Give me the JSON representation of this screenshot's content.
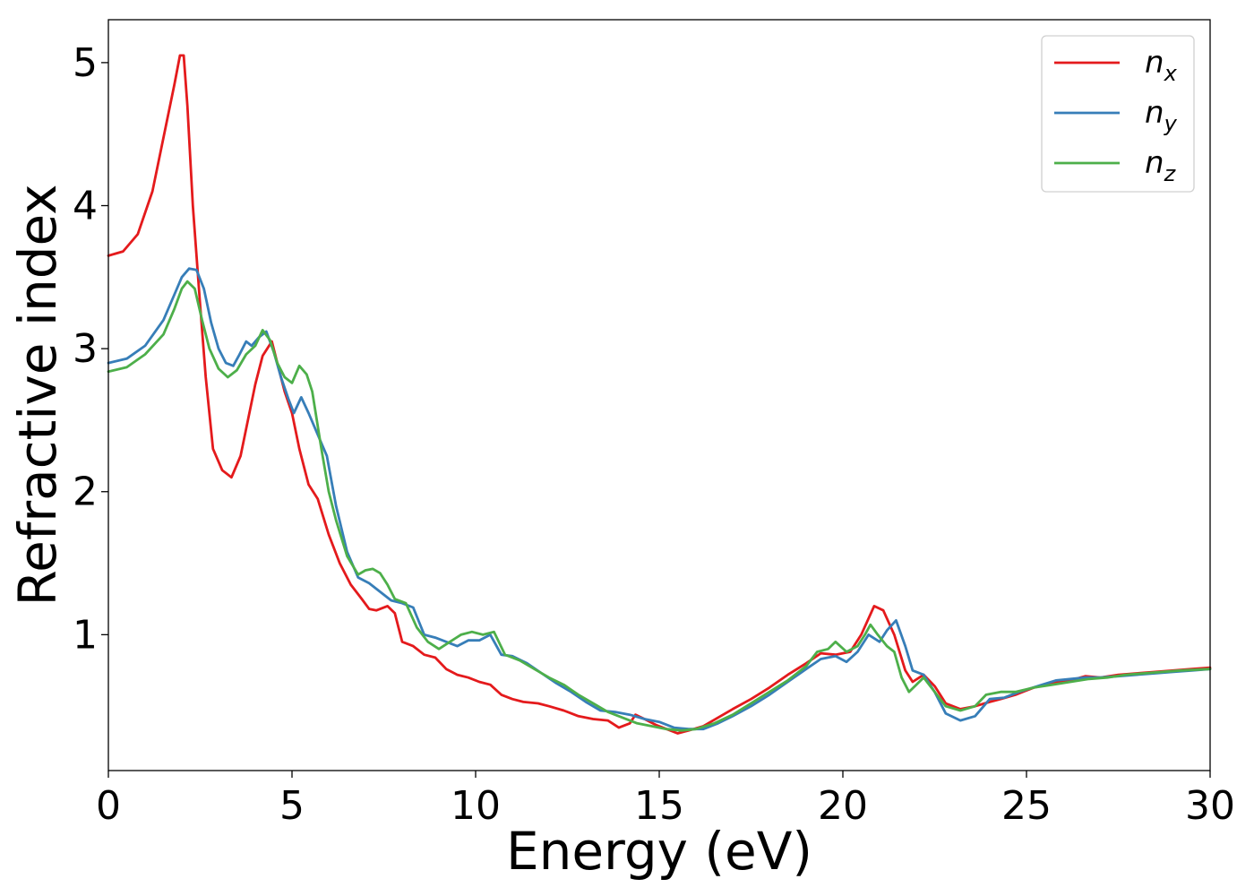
{
  "chart_data": {
    "type": "line",
    "title": "",
    "xlabel": "Energy (eV)",
    "ylabel": "Refractive index",
    "xlim": [
      0,
      30
    ],
    "ylim": [
      0.05,
      5.3
    ],
    "xticks": [
      0,
      5,
      10,
      15,
      20,
      25,
      30
    ],
    "xtick_labels": [
      "0",
      "5",
      "10",
      "15",
      "20",
      "25",
      "30"
    ],
    "yticks": [
      1,
      2,
      3,
      4,
      5
    ],
    "ytick_labels": [
      "1",
      "2",
      "3",
      "4",
      "5"
    ],
    "grid": false,
    "legend_position": "top-right",
    "series": [
      {
        "name": "n_x",
        "label_main": "n",
        "label_sub": "x",
        "color": "#e41a1c",
        "points": [
          [
            0,
            3.65
          ],
          [
            0.4,
            3.68
          ],
          [
            0.8,
            3.8
          ],
          [
            1.2,
            4.1
          ],
          [
            1.6,
            4.6
          ],
          [
            1.8,
            4.85
          ],
          [
            1.95,
            5.05
          ],
          [
            2.05,
            5.05
          ],
          [
            2.15,
            4.7
          ],
          [
            2.3,
            4.0
          ],
          [
            2.5,
            3.3
          ],
          [
            2.65,
            2.8
          ],
          [
            2.85,
            2.3
          ],
          [
            3.1,
            2.15
          ],
          [
            3.35,
            2.1
          ],
          [
            3.6,
            2.25
          ],
          [
            3.8,
            2.5
          ],
          [
            4.0,
            2.75
          ],
          [
            4.2,
            2.95
          ],
          [
            4.45,
            3.05
          ],
          [
            4.6,
            2.9
          ],
          [
            4.8,
            2.7
          ],
          [
            5.0,
            2.55
          ],
          [
            5.2,
            2.3
          ],
          [
            5.45,
            2.05
          ],
          [
            5.7,
            1.95
          ],
          [
            6.0,
            1.7
          ],
          [
            6.3,
            1.5
          ],
          [
            6.6,
            1.35
          ],
          [
            6.9,
            1.25
          ],
          [
            7.1,
            1.18
          ],
          [
            7.3,
            1.17
          ],
          [
            7.6,
            1.2
          ],
          [
            7.8,
            1.15
          ],
          [
            8.0,
            0.95
          ],
          [
            8.3,
            0.92
          ],
          [
            8.6,
            0.86
          ],
          [
            8.9,
            0.84
          ],
          [
            9.2,
            0.76
          ],
          [
            9.5,
            0.72
          ],
          [
            9.8,
            0.7
          ],
          [
            10.1,
            0.67
          ],
          [
            10.4,
            0.65
          ],
          [
            10.7,
            0.58
          ],
          [
            11.0,
            0.55
          ],
          [
            11.3,
            0.53
          ],
          [
            11.7,
            0.52
          ],
          [
            12.0,
            0.5
          ],
          [
            12.4,
            0.47
          ],
          [
            12.8,
            0.43
          ],
          [
            13.2,
            0.41
          ],
          [
            13.6,
            0.4
          ],
          [
            13.9,
            0.35
          ],
          [
            14.2,
            0.38
          ],
          [
            14.35,
            0.44
          ],
          [
            14.6,
            0.41
          ],
          [
            14.9,
            0.37
          ],
          [
            15.2,
            0.34
          ],
          [
            15.5,
            0.31
          ],
          [
            15.8,
            0.33
          ],
          [
            16.2,
            0.36
          ],
          [
            16.6,
            0.42
          ],
          [
            17.0,
            0.48
          ],
          [
            17.5,
            0.55
          ],
          [
            18.0,
            0.63
          ],
          [
            18.5,
            0.72
          ],
          [
            19.0,
            0.8
          ],
          [
            19.4,
            0.87
          ],
          [
            19.8,
            0.86
          ],
          [
            20.2,
            0.88
          ],
          [
            20.5,
            1.0
          ],
          [
            20.85,
            1.2
          ],
          [
            21.1,
            1.17
          ],
          [
            21.4,
            1.0
          ],
          [
            21.7,
            0.75
          ],
          [
            21.9,
            0.67
          ],
          [
            22.2,
            0.72
          ],
          [
            22.5,
            0.64
          ],
          [
            22.8,
            0.52
          ],
          [
            23.2,
            0.48
          ],
          [
            23.6,
            0.5
          ],
          [
            24.0,
            0.53
          ],
          [
            24.3,
            0.55
          ],
          [
            24.7,
            0.58
          ],
          [
            25.2,
            0.63
          ],
          [
            25.7,
            0.66
          ],
          [
            26.2,
            0.68
          ],
          [
            26.6,
            0.71
          ],
          [
            27.0,
            0.7
          ],
          [
            27.5,
            0.72
          ],
          [
            28.0,
            0.73
          ],
          [
            28.5,
            0.74
          ],
          [
            29.0,
            0.75
          ],
          [
            29.5,
            0.76
          ],
          [
            30.0,
            0.77
          ]
        ]
      },
      {
        "name": "n_y",
        "label_main": "n",
        "label_sub": "y",
        "color": "#377eb8",
        "points": [
          [
            0,
            2.9
          ],
          [
            0.5,
            2.93
          ],
          [
            1.0,
            3.02
          ],
          [
            1.5,
            3.2
          ],
          [
            1.8,
            3.38
          ],
          [
            2.0,
            3.5
          ],
          [
            2.2,
            3.56
          ],
          [
            2.4,
            3.55
          ],
          [
            2.6,
            3.42
          ],
          [
            2.8,
            3.18
          ],
          [
            3.0,
            3.0
          ],
          [
            3.2,
            2.9
          ],
          [
            3.4,
            2.88
          ],
          [
            3.55,
            2.95
          ],
          [
            3.75,
            3.05
          ],
          [
            3.9,
            3.02
          ],
          [
            4.1,
            3.08
          ],
          [
            4.3,
            3.12
          ],
          [
            4.5,
            2.98
          ],
          [
            4.7,
            2.8
          ],
          [
            4.9,
            2.65
          ],
          [
            5.05,
            2.55
          ],
          [
            5.25,
            2.66
          ],
          [
            5.45,
            2.55
          ],
          [
            5.7,
            2.4
          ],
          [
            5.95,
            2.25
          ],
          [
            6.2,
            1.9
          ],
          [
            6.5,
            1.58
          ],
          [
            6.8,
            1.4
          ],
          [
            7.1,
            1.36
          ],
          [
            7.4,
            1.3
          ],
          [
            7.7,
            1.24
          ],
          [
            8.0,
            1.22
          ],
          [
            8.3,
            1.19
          ],
          [
            8.6,
            1.0
          ],
          [
            8.9,
            0.98
          ],
          [
            9.2,
            0.95
          ],
          [
            9.5,
            0.92
          ],
          [
            9.8,
            0.96
          ],
          [
            10.1,
            0.96
          ],
          [
            10.4,
            1.0
          ],
          [
            10.7,
            0.86
          ],
          [
            11.0,
            0.85
          ],
          [
            11.4,
            0.8
          ],
          [
            11.8,
            0.73
          ],
          [
            12.2,
            0.66
          ],
          [
            12.6,
            0.6
          ],
          [
            13.0,
            0.53
          ],
          [
            13.4,
            0.47
          ],
          [
            13.8,
            0.46
          ],
          [
            14.2,
            0.44
          ],
          [
            14.6,
            0.41
          ],
          [
            15.0,
            0.39
          ],
          [
            15.4,
            0.35
          ],
          [
            15.8,
            0.34
          ],
          [
            16.2,
            0.34
          ],
          [
            16.6,
            0.38
          ],
          [
            17.0,
            0.43
          ],
          [
            17.5,
            0.5
          ],
          [
            18.0,
            0.58
          ],
          [
            18.5,
            0.67
          ],
          [
            19.0,
            0.76
          ],
          [
            19.4,
            0.83
          ],
          [
            19.8,
            0.85
          ],
          [
            20.1,
            0.81
          ],
          [
            20.4,
            0.88
          ],
          [
            20.7,
            1.0
          ],
          [
            21.0,
            0.95
          ],
          [
            21.2,
            1.03
          ],
          [
            21.45,
            1.1
          ],
          [
            21.7,
            0.92
          ],
          [
            21.9,
            0.75
          ],
          [
            22.2,
            0.72
          ],
          [
            22.5,
            0.6
          ],
          [
            22.8,
            0.45
          ],
          [
            23.2,
            0.4
          ],
          [
            23.6,
            0.43
          ],
          [
            24.0,
            0.55
          ],
          [
            24.4,
            0.56
          ],
          [
            24.8,
            0.6
          ],
          [
            25.3,
            0.64
          ],
          [
            25.8,
            0.68
          ],
          [
            26.2,
            0.69
          ],
          [
            26.6,
            0.7
          ],
          [
            27.0,
            0.7
          ],
          [
            27.5,
            0.71
          ],
          [
            28.0,
            0.72
          ],
          [
            28.5,
            0.73
          ],
          [
            29.0,
            0.74
          ],
          [
            29.5,
            0.75
          ],
          [
            30.0,
            0.76
          ]
        ]
      },
      {
        "name": "n_z",
        "label_main": "n",
        "label_sub": "z",
        "color": "#4daf4a",
        "points": [
          [
            0,
            2.84
          ],
          [
            0.5,
            2.87
          ],
          [
            1.0,
            2.96
          ],
          [
            1.5,
            3.1
          ],
          [
            1.8,
            3.28
          ],
          [
            2.0,
            3.42
          ],
          [
            2.15,
            3.47
          ],
          [
            2.35,
            3.42
          ],
          [
            2.55,
            3.2
          ],
          [
            2.75,
            3.0
          ],
          [
            3.0,
            2.86
          ],
          [
            3.25,
            2.8
          ],
          [
            3.5,
            2.85
          ],
          [
            3.75,
            2.96
          ],
          [
            4.0,
            3.02
          ],
          [
            4.2,
            3.13
          ],
          [
            4.4,
            3.06
          ],
          [
            4.6,
            2.9
          ],
          [
            4.8,
            2.8
          ],
          [
            5.0,
            2.76
          ],
          [
            5.2,
            2.88
          ],
          [
            5.4,
            2.82
          ],
          [
            5.55,
            2.7
          ],
          [
            5.8,
            2.3
          ],
          [
            6.0,
            2.0
          ],
          [
            6.2,
            1.8
          ],
          [
            6.5,
            1.55
          ],
          [
            6.8,
            1.42
          ],
          [
            7.0,
            1.45
          ],
          [
            7.2,
            1.46
          ],
          [
            7.4,
            1.43
          ],
          [
            7.6,
            1.35
          ],
          [
            7.8,
            1.25
          ],
          [
            8.1,
            1.22
          ],
          [
            8.4,
            1.05
          ],
          [
            8.7,
            0.95
          ],
          [
            9.0,
            0.9
          ],
          [
            9.3,
            0.95
          ],
          [
            9.6,
            1.0
          ],
          [
            9.9,
            1.02
          ],
          [
            10.2,
            1.0
          ],
          [
            10.5,
            1.02
          ],
          [
            10.8,
            0.86
          ],
          [
            11.2,
            0.82
          ],
          [
            11.6,
            0.76
          ],
          [
            12.0,
            0.7
          ],
          [
            12.4,
            0.65
          ],
          [
            12.8,
            0.58
          ],
          [
            13.2,
            0.52
          ],
          [
            13.6,
            0.46
          ],
          [
            14.0,
            0.42
          ],
          [
            14.4,
            0.38
          ],
          [
            14.8,
            0.36
          ],
          [
            15.2,
            0.34
          ],
          [
            15.6,
            0.33
          ],
          [
            16.0,
            0.34
          ],
          [
            16.5,
            0.38
          ],
          [
            17.0,
            0.44
          ],
          [
            17.5,
            0.52
          ],
          [
            18.0,
            0.6
          ],
          [
            18.5,
            0.68
          ],
          [
            19.0,
            0.78
          ],
          [
            19.3,
            0.88
          ],
          [
            19.6,
            0.9
          ],
          [
            19.8,
            0.95
          ],
          [
            20.1,
            0.88
          ],
          [
            20.4,
            0.92
          ],
          [
            20.6,
            1.0
          ],
          [
            20.75,
            1.07
          ],
          [
            20.95,
            1.0
          ],
          [
            21.2,
            0.92
          ],
          [
            21.4,
            0.88
          ],
          [
            21.6,
            0.7
          ],
          [
            21.8,
            0.6
          ],
          [
            22.0,
            0.65
          ],
          [
            22.2,
            0.7
          ],
          [
            22.5,
            0.6
          ],
          [
            22.8,
            0.5
          ],
          [
            23.2,
            0.47
          ],
          [
            23.6,
            0.5
          ],
          [
            23.9,
            0.58
          ],
          [
            24.3,
            0.6
          ],
          [
            24.7,
            0.6
          ],
          [
            25.2,
            0.63
          ],
          [
            25.7,
            0.65
          ],
          [
            26.2,
            0.67
          ],
          [
            26.7,
            0.69
          ],
          [
            27.2,
            0.7
          ],
          [
            27.7,
            0.72
          ],
          [
            28.2,
            0.73
          ],
          [
            28.7,
            0.74
          ],
          [
            29.2,
            0.75
          ],
          [
            30.0,
            0.76
          ]
        ]
      }
    ]
  }
}
